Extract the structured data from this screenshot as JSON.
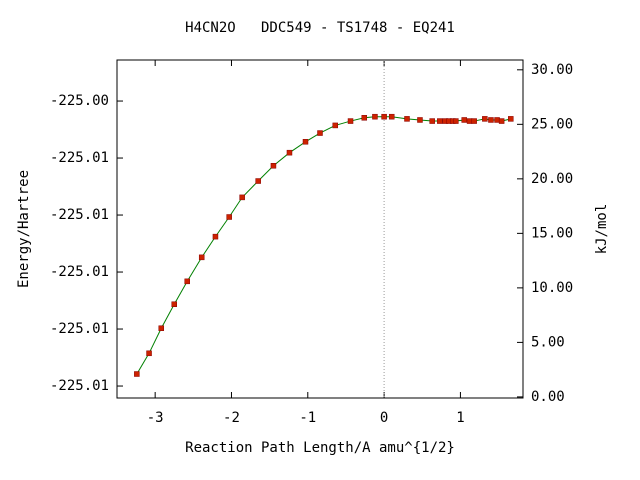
{
  "chart_data": {
    "type": "line",
    "title": "H4CN2O   DDC549 - TS1748 - EQ241",
    "x_label": "Reaction Path Length/A amu^{1/2}",
    "y_label": "Energy/Hartree",
    "y2_label": "kJ/mol",
    "xlim": [
      -3.5,
      1.82
    ],
    "xticks": [
      -3,
      -2,
      -1,
      0,
      1
    ],
    "ylim": [
      -225.01492,
      -225.00306
    ],
    "yticks": [
      {
        "value": -225.0045,
        "label": "-225.00"
      },
      {
        "value": -225.0065,
        "label": "-225.01"
      },
      {
        "value": -225.0085,
        "label": "-225.01"
      },
      {
        "value": -225.0105,
        "label": "-225.01"
      },
      {
        "value": -225.0125,
        "label": "-225.01"
      },
      {
        "value": -225.0145,
        "label": "-225.01"
      }
    ],
    "y2lim": [
      -0.1,
      30.9
    ],
    "y2ticks": [
      {
        "value": 0,
        "label": "0.00"
      },
      {
        "value": 5,
        "label": "5.00"
      },
      {
        "value": 10,
        "label": "10.00"
      },
      {
        "value": 15,
        "label": "15.00"
      },
      {
        "value": 20,
        "label": "20.00"
      },
      {
        "value": 25,
        "label": "25.00"
      },
      {
        "value": 30,
        "label": "30.00"
      }
    ],
    "ts_line_x": 0,
    "x": [
      -3.24,
      -3.08,
      -2.92,
      -2.75,
      -2.58,
      -2.39,
      -2.21,
      -2.03,
      -1.86,
      -1.65,
      -1.45,
      -1.24,
      -1.03,
      -0.84,
      -0.64,
      -0.44,
      -0.26,
      -0.12,
      0,
      0.1,
      0.3,
      0.47,
      0.63,
      0.73,
      0.8,
      0.85,
      0.9,
      0.94,
      1.05,
      1.12,
      1.18,
      1.32,
      1.4,
      1.48,
      1.54,
      1.66
    ],
    "series": [
      {
        "axis": "y2",
        "color": "#008000",
        "marker_color": "#cc2200",
        "values": [
          2.1,
          4.0,
          6.3,
          8.5,
          10.6,
          12.8,
          14.7,
          16.5,
          18.3,
          19.8,
          21.2,
          22.4,
          23.4,
          24.2,
          24.9,
          25.3,
          25.6,
          25.7,
          25.7,
          25.7,
          25.5,
          25.4,
          25.3,
          25.3,
          25.3,
          25.3,
          25.3,
          25.3,
          25.4,
          25.3,
          25.3,
          25.5,
          25.4,
          25.4,
          25.3,
          25.5
        ]
      }
    ]
  }
}
